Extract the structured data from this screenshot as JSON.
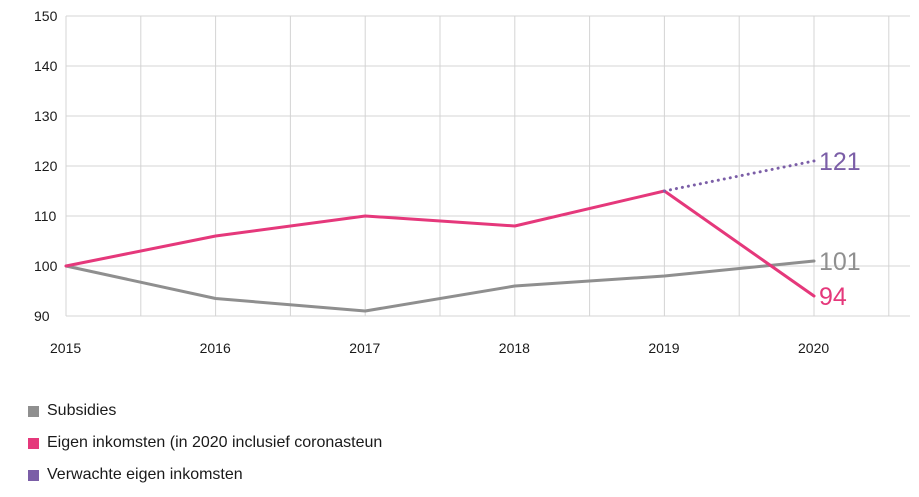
{
  "chart_data": {
    "type": "line",
    "x": [
      "2015",
      "2016",
      "2017",
      "2018",
      "2019",
      "2020"
    ],
    "ylim": [
      90,
      150
    ],
    "yticks": [
      90,
      100,
      110,
      120,
      130,
      140,
      150
    ],
    "grid": true,
    "legend_position": "bottom-left",
    "series": [
      {
        "name": "Subsidies",
        "color": "#8f8f8f",
        "values": [
          100,
          93.5,
          91,
          96,
          98,
          101
        ],
        "end_label": "101",
        "style": "solid"
      },
      {
        "name": "Eigen inkomsten (in 2020 inclusief coronasteun",
        "color": "#e5387b",
        "values": [
          100,
          106,
          110,
          108,
          115,
          94
        ],
        "end_label": "94",
        "style": "solid"
      },
      {
        "name": "Verwachte eigen inkomsten",
        "color": "#7b5ea7",
        "values": [
          null,
          null,
          null,
          null,
          115,
          121
        ],
        "end_label": "121",
        "style": "dotted"
      }
    ]
  }
}
